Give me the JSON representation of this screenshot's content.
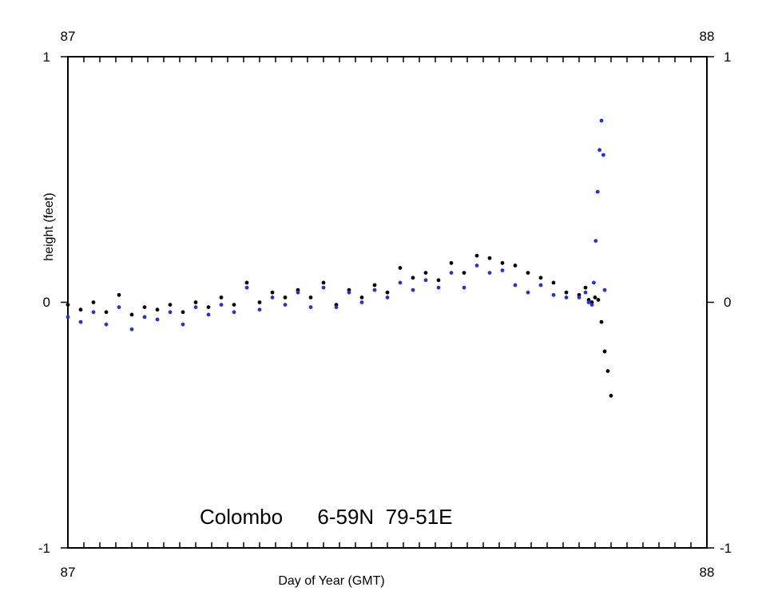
{
  "chart_data": {
    "type": "scatter",
    "title": "",
    "annotation": "Colombo      6-59N  79-51E",
    "xlabel": "Day of Year (GMT)",
    "ylabel": "height (feet)",
    "xlim": [
      87,
      88
    ],
    "ylim": [
      -1,
      1
    ],
    "x_ticks_bottom": [
      "87",
      "88"
    ],
    "x_ticks_top": [
      "87",
      "88"
    ],
    "y_ticks_left": [
      "1",
      "0",
      "-1"
    ],
    "y_ticks_right": [
      "1",
      "0",
      "-1"
    ],
    "x_minor_tick_step": 0.025,
    "grid": false,
    "legend": "none",
    "series": [
      {
        "color": "#000000",
        "x": [
          87.0,
          87.02,
          87.04,
          87.06,
          87.08,
          87.1,
          87.12,
          87.14,
          87.16,
          87.18,
          87.2,
          87.22,
          87.24,
          87.26,
          87.28,
          87.3,
          87.32,
          87.34,
          87.36,
          87.38,
          87.4,
          87.42,
          87.44,
          87.46,
          87.48,
          87.5,
          87.52,
          87.54,
          87.56,
          87.58,
          87.6,
          87.62,
          87.64,
          87.66,
          87.68,
          87.7,
          87.72,
          87.74,
          87.76,
          87.78,
          87.8,
          87.81,
          87.815,
          87.82,
          87.825,
          87.83,
          87.835,
          87.84,
          87.845,
          87.85
        ],
        "y": [
          -0.01,
          -0.03,
          0.0,
          -0.04,
          0.03,
          -0.05,
          -0.02,
          -0.03,
          -0.01,
          -0.04,
          0.0,
          -0.02,
          0.02,
          -0.01,
          0.08,
          0.0,
          0.04,
          0.02,
          0.05,
          0.02,
          0.08,
          -0.01,
          0.05,
          0.02,
          0.07,
          0.04,
          0.14,
          0.1,
          0.12,
          0.09,
          0.16,
          0.12,
          0.19,
          0.18,
          0.16,
          0.15,
          0.12,
          0.1,
          0.08,
          0.04,
          0.03,
          0.06,
          0.01,
          0.0,
          0.02,
          0.01,
          -0.08,
          -0.2,
          -0.28,
          -0.38
        ]
      },
      {
        "color": "#2233dd",
        "x": [
          87.0,
          87.02,
          87.04,
          87.06,
          87.08,
          87.1,
          87.12,
          87.14,
          87.16,
          87.18,
          87.2,
          87.22,
          87.24,
          87.26,
          87.28,
          87.3,
          87.32,
          87.34,
          87.36,
          87.38,
          87.4,
          87.42,
          87.44,
          87.46,
          87.48,
          87.5,
          87.52,
          87.54,
          87.56,
          87.58,
          87.6,
          87.62,
          87.64,
          87.66,
          87.68,
          87.7,
          87.72,
          87.74,
          87.76,
          87.78,
          87.8,
          87.81,
          87.815,
          87.82,
          87.823,
          87.826,
          87.829,
          87.832,
          87.835,
          87.838,
          87.84
        ],
        "y": [
          -0.06,
          -0.08,
          -0.04,
          -0.09,
          -0.02,
          -0.11,
          -0.06,
          -0.07,
          -0.04,
          -0.09,
          -0.02,
          -0.05,
          -0.01,
          -0.04,
          0.06,
          -0.03,
          0.02,
          -0.01,
          0.04,
          -0.02,
          0.06,
          -0.02,
          0.04,
          0.0,
          0.05,
          0.02,
          0.08,
          0.05,
          0.09,
          0.06,
          0.12,
          0.06,
          0.15,
          0.12,
          0.13,
          0.07,
          0.04,
          0.07,
          0.03,
          0.02,
          0.02,
          0.04,
          0.0,
          -0.01,
          0.08,
          0.25,
          0.45,
          0.62,
          0.74,
          0.6,
          0.05
        ]
      }
    ]
  }
}
